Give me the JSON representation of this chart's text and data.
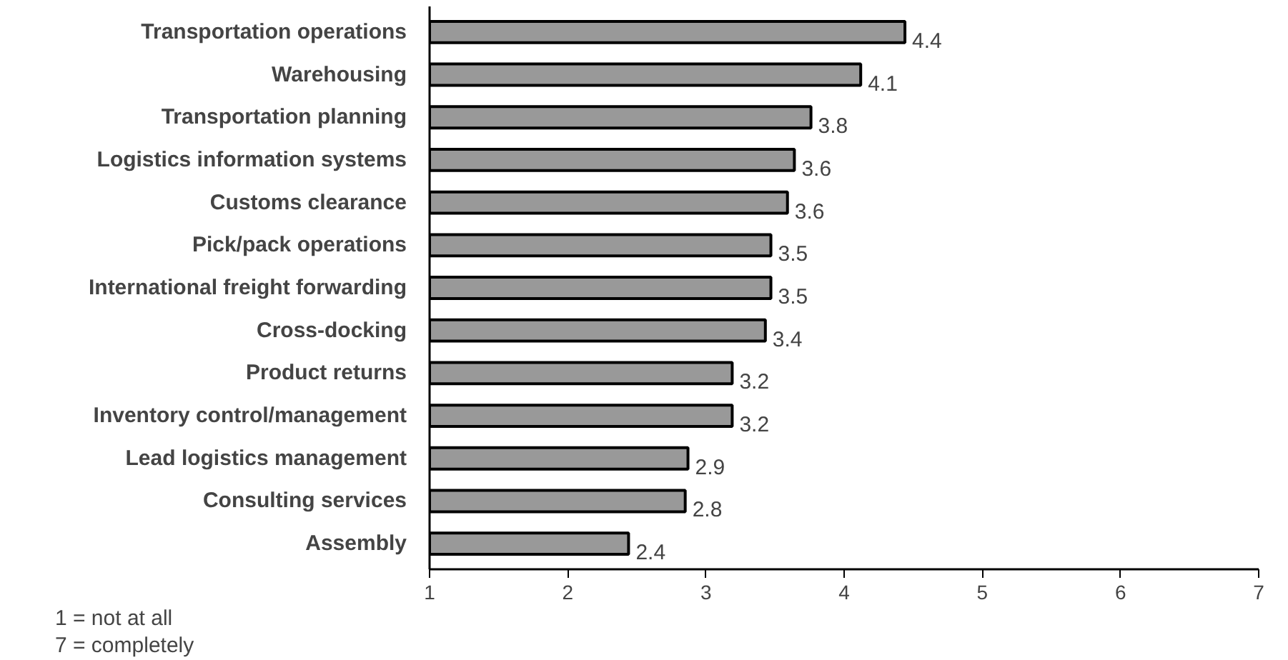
{
  "chart_data": {
    "type": "bar",
    "orientation": "horizontal",
    "categories": [
      "Transportation operations",
      "Warehousing",
      "Transportation planning",
      "Logistics information systems",
      "Customs clearance",
      "Pick/pack operations",
      "International freight forwarding",
      "Cross-docking",
      "Product returns",
      "Inventory control/management",
      "Lead logistics management",
      "Consulting services",
      "Assembly"
    ],
    "values": [
      4.44,
      4.12,
      3.76,
      3.64,
      3.59,
      3.47,
      3.47,
      3.43,
      3.19,
      3.19,
      2.87,
      2.85,
      2.44
    ],
    "value_labels": [
      "4.4",
      "4.1",
      "3.8",
      "3.6",
      "3.6",
      "3.5",
      "3.5",
      "3.4",
      "3.2",
      "3.2",
      "2.9",
      "2.8",
      "2.4"
    ],
    "color": "#999999",
    "xlim": [
      1,
      7
    ],
    "xticks": [
      1,
      2,
      3,
      4,
      5,
      6,
      7
    ],
    "grid": false,
    "annotations": [
      "1 = not at all",
      "7 = completely"
    ]
  }
}
